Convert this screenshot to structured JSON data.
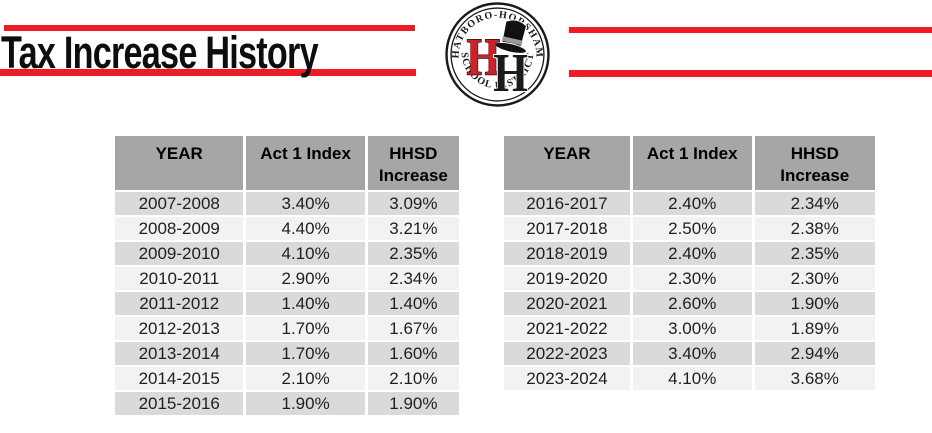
{
  "header": {
    "title": "Tax Increase History",
    "accent_color": "#ee1b24"
  },
  "logo": {
    "name": "hatboro-horsham-school-district-seal",
    "top_text": "HATBORO-HORSHAM",
    "bottom_text": "SCHOOL DISTRICT",
    "monogram_left": "H",
    "monogram_right": "H",
    "red_color": "#cf2128",
    "black_color": "#1a1a1a"
  },
  "tables": {
    "columns": [
      {
        "id": "year",
        "label": "YEAR"
      },
      {
        "id": "act1_index",
        "label": "Act 1 Index"
      },
      {
        "id": "hhsd_increase",
        "label_line1": "HHSD",
        "label_line2": "Increase"
      }
    ],
    "style": {
      "header_bg": "#a6a6a6",
      "row_band_dark": "#dadada",
      "row_band_light": "#f2f2f2"
    },
    "left": {
      "rows": [
        [
          "2007-2008",
          "3.40%",
          "3.09%"
        ],
        [
          "2008-2009",
          "4.40%",
          "3.21%"
        ],
        [
          "2009-2010",
          "4.10%",
          "2.35%"
        ],
        [
          "2010-2011",
          "2.90%",
          "2.34%"
        ],
        [
          "2011-2012",
          "1.40%",
          "1.40%"
        ],
        [
          "2012-2013",
          "1.70%",
          "1.67%"
        ],
        [
          "2013-2014",
          "1.70%",
          "1.60%"
        ],
        [
          "2014-2015",
          "2.10%",
          "2.10%"
        ],
        [
          "2015-2016",
          "1.90%",
          "1.90%"
        ]
      ]
    },
    "right": {
      "rows": [
        [
          "2016-2017",
          "2.40%",
          "2.34%"
        ],
        [
          "2017-2018",
          "2.50%",
          "2.38%"
        ],
        [
          "2018-2019",
          "2.40%",
          "2.35%"
        ],
        [
          "2019-2020",
          "2.30%",
          "2.30%"
        ],
        [
          "2020-2021",
          "2.60%",
          "1.90%"
        ],
        [
          "2021-2022",
          "3.00%",
          "1.89%"
        ],
        [
          "2022-2023",
          "3.40%",
          "2.94%"
        ],
        [
          "2023-2024",
          "4.10%",
          "3.68%"
        ]
      ]
    }
  }
}
